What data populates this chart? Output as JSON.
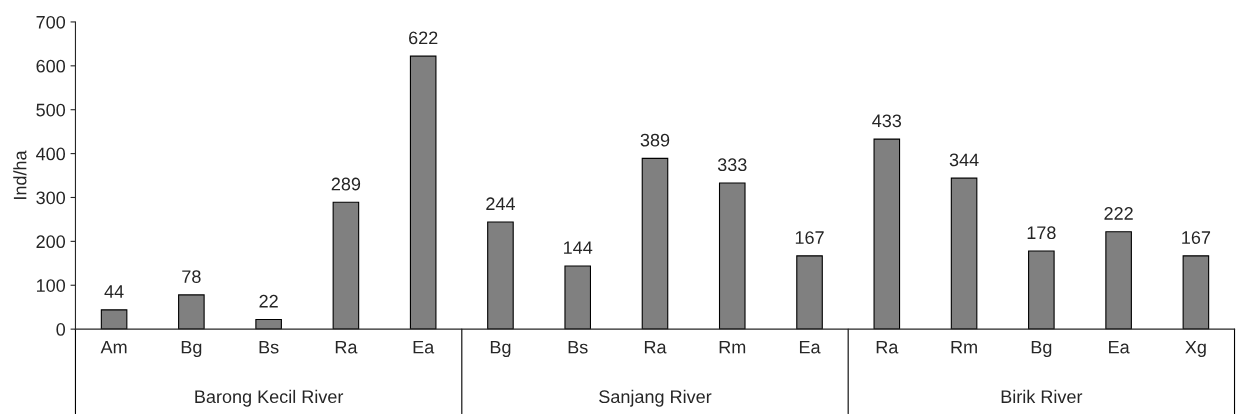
{
  "chart_data": {
    "type": "bar",
    "ylabel": "Ind/ha",
    "categories": [
      "Am",
      "Bg",
      "Bs",
      "Ra",
      "Ea",
      "Bg",
      "Bs",
      "Ra",
      "Rm",
      "Ea",
      "Ra",
      "Rm",
      "Bg",
      "Ea",
      "Xg"
    ],
    "values": [
      44,
      78,
      22,
      289,
      622,
      244,
      144,
      389,
      333,
      167,
      433,
      344,
      178,
      222,
      167
    ],
    "color": "#808080",
    "ylim": [
      0,
      700
    ],
    "yticks": [
      0,
      100,
      200,
      300,
      400,
      500,
      600,
      700
    ],
    "data_labels": true,
    "grid": false,
    "legend": false,
    "annotations": [
      "Barong Kecil River",
      "Sanjang River",
      "Birik River"
    ]
  }
}
